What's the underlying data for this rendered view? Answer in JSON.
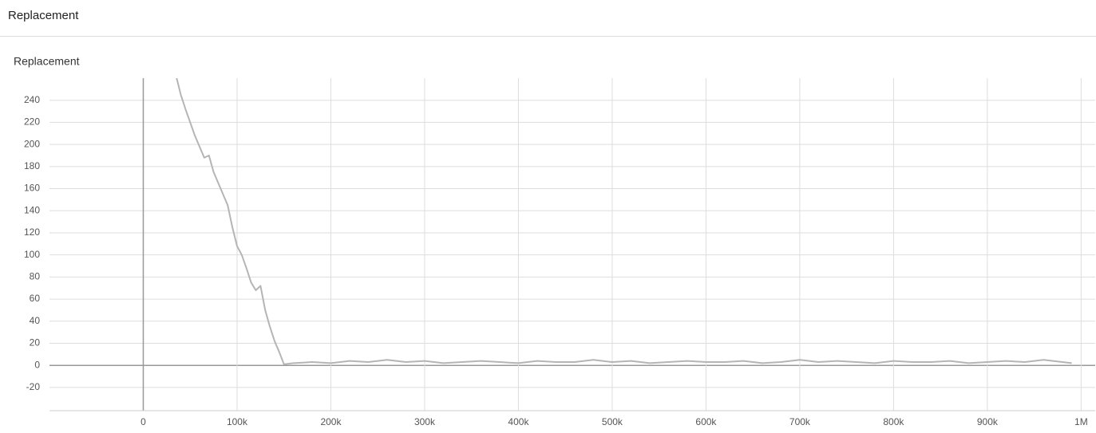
{
  "header": {
    "title": "Replacement"
  },
  "chart_data": {
    "type": "line",
    "title": "Replacement",
    "x": [
      35000,
      40000,
      45000,
      50000,
      55000,
      60000,
      65000,
      70000,
      75000,
      80000,
      85000,
      90000,
      95000,
      100000,
      105000,
      110000,
      115000,
      120000,
      125000,
      130000,
      135000,
      140000,
      145000,
      150000,
      160000,
      180000,
      200000,
      220000,
      240000,
      260000,
      280000,
      300000,
      320000,
      340000,
      360000,
      380000,
      400000,
      420000,
      440000,
      460000,
      480000,
      500000,
      520000,
      540000,
      560000,
      580000,
      600000,
      620000,
      640000,
      660000,
      680000,
      700000,
      720000,
      740000,
      760000,
      780000,
      800000,
      820000,
      840000,
      860000,
      880000,
      900000,
      920000,
      940000,
      960000,
      980000,
      990000
    ],
    "values": [
      262,
      245,
      232,
      220,
      208,
      198,
      188,
      190,
      175,
      165,
      155,
      145,
      125,
      108,
      100,
      88,
      75,
      68,
      72,
      50,
      35,
      22,
      12,
      1,
      2,
      3,
      2,
      4,
      3,
      5,
      3,
      4,
      2,
      3,
      4,
      3,
      2,
      4,
      3,
      3,
      5,
      3,
      4,
      2,
      3,
      4,
      3,
      3,
      4,
      2,
      3,
      5,
      3,
      4,
      3,
      2,
      4,
      3,
      3,
      4,
      2,
      3,
      4,
      3,
      5,
      3,
      2
    ],
    "color": "#b5b5b5",
    "xlim": [
      -100000,
      1015000
    ],
    "xticks": [
      0,
      {
        "value": 100000,
        "label": "100k"
      },
      {
        "value": 200000,
        "label": "200k"
      },
      {
        "value": 300000,
        "label": "300k"
      },
      {
        "value": 400000,
        "label": "400k"
      },
      {
        "value": 500000,
        "label": "500k"
      },
      {
        "value": 600000,
        "label": "600k"
      },
      {
        "value": 700000,
        "label": "700k"
      },
      {
        "value": 800000,
        "label": "800k"
      },
      {
        "value": 900000,
        "label": "900k"
      },
      {
        "value": 1000000,
        "label": "1M"
      }
    ],
    "ylim": [
      -41,
      260
    ],
    "yticks": [
      -20,
      0,
      20,
      40,
      60,
      80,
      100,
      120,
      140,
      160,
      180,
      200,
      220,
      240
    ],
    "grid": true
  }
}
